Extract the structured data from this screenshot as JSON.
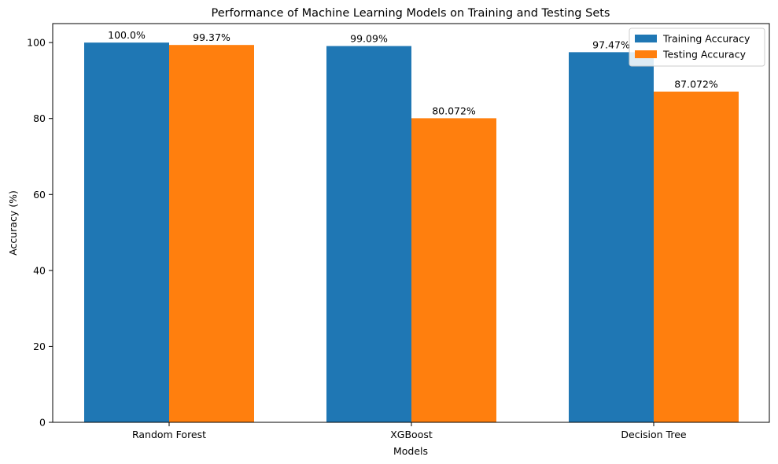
{
  "chart_data": {
    "type": "bar",
    "title": "Performance of Machine Learning Models on Training and Testing Sets",
    "xlabel": "Models",
    "ylabel": "Accuracy (%)",
    "categories": [
      "Random Forest",
      "XGBoost",
      "Decision Tree"
    ],
    "series": [
      {
        "name": "Training Accuracy",
        "color": "#1f77b4",
        "values": [
          100.0,
          99.09,
          97.47
        ],
        "labels": [
          "100.0%",
          "99.09%",
          "97.47%"
        ]
      },
      {
        "name": "Testing Accuracy",
        "color": "#ff7f0e",
        "values": [
          99.37,
          80.072,
          87.072
        ],
        "labels": [
          "99.37%",
          "80.072%",
          "87.072%"
        ]
      }
    ],
    "ylim": [
      0,
      105
    ],
    "yticks": [
      0,
      20,
      40,
      60,
      80,
      100
    ],
    "ytick_labels": [
      "0",
      "20",
      "40",
      "60",
      "80",
      "100"
    ],
    "grid": false,
    "legend_position": "top-right"
  }
}
